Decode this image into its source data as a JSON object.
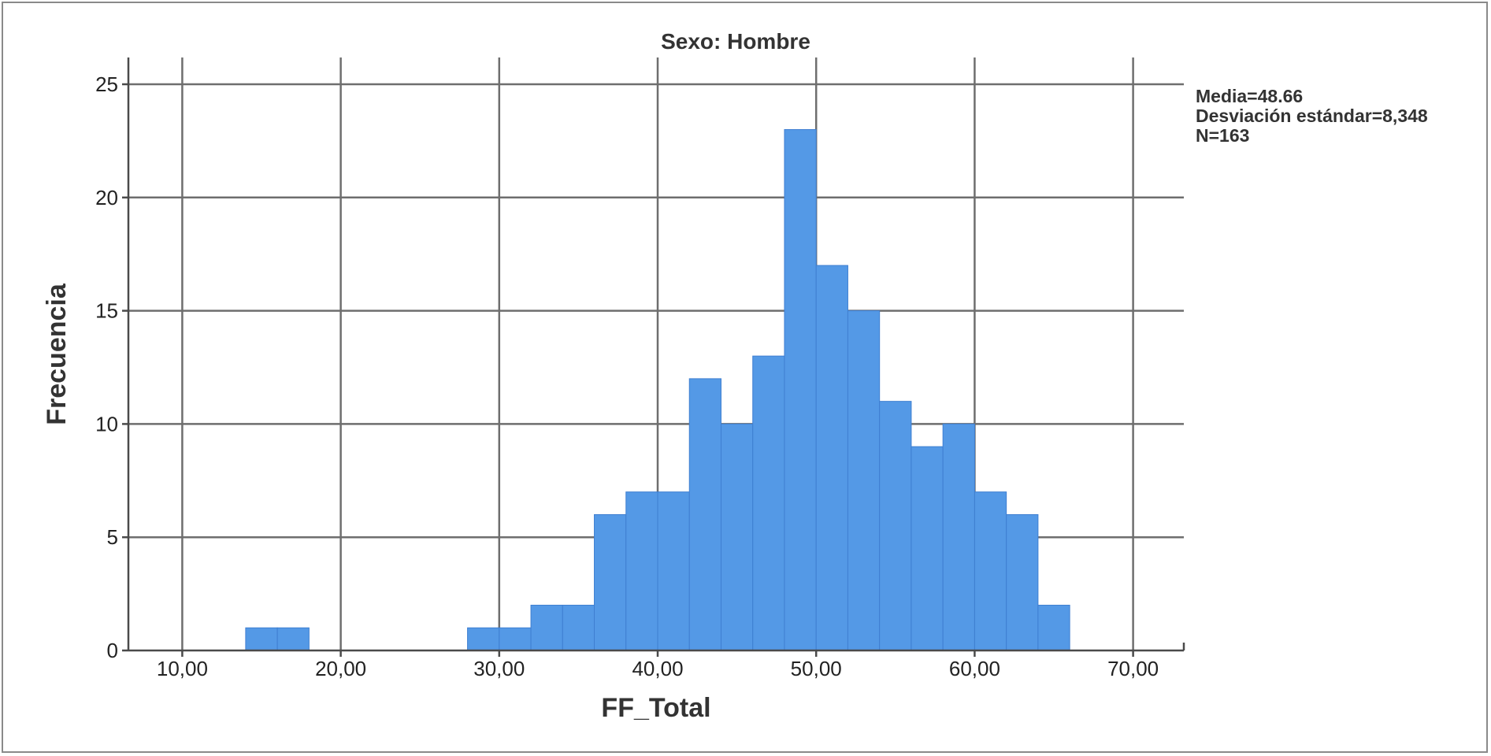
{
  "chart_data": {
    "type": "bar",
    "title": "Sexo: Hombre",
    "xlabel": "FF_Total",
    "ylabel": "Frecuencia",
    "xlim": [
      6.6,
      73.2
    ],
    "ylim": [
      0,
      25
    ],
    "x_ticks": [
      10,
      20,
      30,
      40,
      50,
      60,
      70
    ],
    "x_tick_labels": [
      "10,00",
      "20,00",
      "30,00",
      "40,00",
      "50,00",
      "60,00",
      "70,00"
    ],
    "y_ticks": [
      0,
      5,
      10,
      15,
      20,
      25
    ],
    "y_tick_labels": [
      "0",
      "5",
      "10",
      "15",
      "20",
      "25"
    ],
    "grid": true,
    "bar_color": "#5499e6",
    "bins": [
      {
        "start": 14,
        "end": 16,
        "count": 1
      },
      {
        "start": 16,
        "end": 18,
        "count": 1
      },
      {
        "start": 28,
        "end": 30,
        "count": 1
      },
      {
        "start": 30,
        "end": 32,
        "count": 1
      },
      {
        "start": 32,
        "end": 34,
        "count": 2
      },
      {
        "start": 34,
        "end": 36,
        "count": 2
      },
      {
        "start": 36,
        "end": 38,
        "count": 6
      },
      {
        "start": 38,
        "end": 40,
        "count": 7
      },
      {
        "start": 40,
        "end": 42,
        "count": 7
      },
      {
        "start": 42,
        "end": 44,
        "count": 12
      },
      {
        "start": 44,
        "end": 46,
        "count": 10
      },
      {
        "start": 46,
        "end": 48,
        "count": 13
      },
      {
        "start": 48,
        "end": 50,
        "count": 23
      },
      {
        "start": 50,
        "end": 52,
        "count": 17
      },
      {
        "start": 52,
        "end": 54,
        "count": 15
      },
      {
        "start": 54,
        "end": 56,
        "count": 11
      },
      {
        "start": 56,
        "end": 58,
        "count": 9
      },
      {
        "start": 58,
        "end": 60,
        "count": 10
      },
      {
        "start": 60,
        "end": 62,
        "count": 7
      },
      {
        "start": 62,
        "end": 64,
        "count": 6
      },
      {
        "start": 64,
        "end": 66,
        "count": 2
      }
    ],
    "stats": {
      "media": "Media=48.66",
      "desviacion": "Desviación estándar=8,348",
      "n": "N=163"
    }
  }
}
